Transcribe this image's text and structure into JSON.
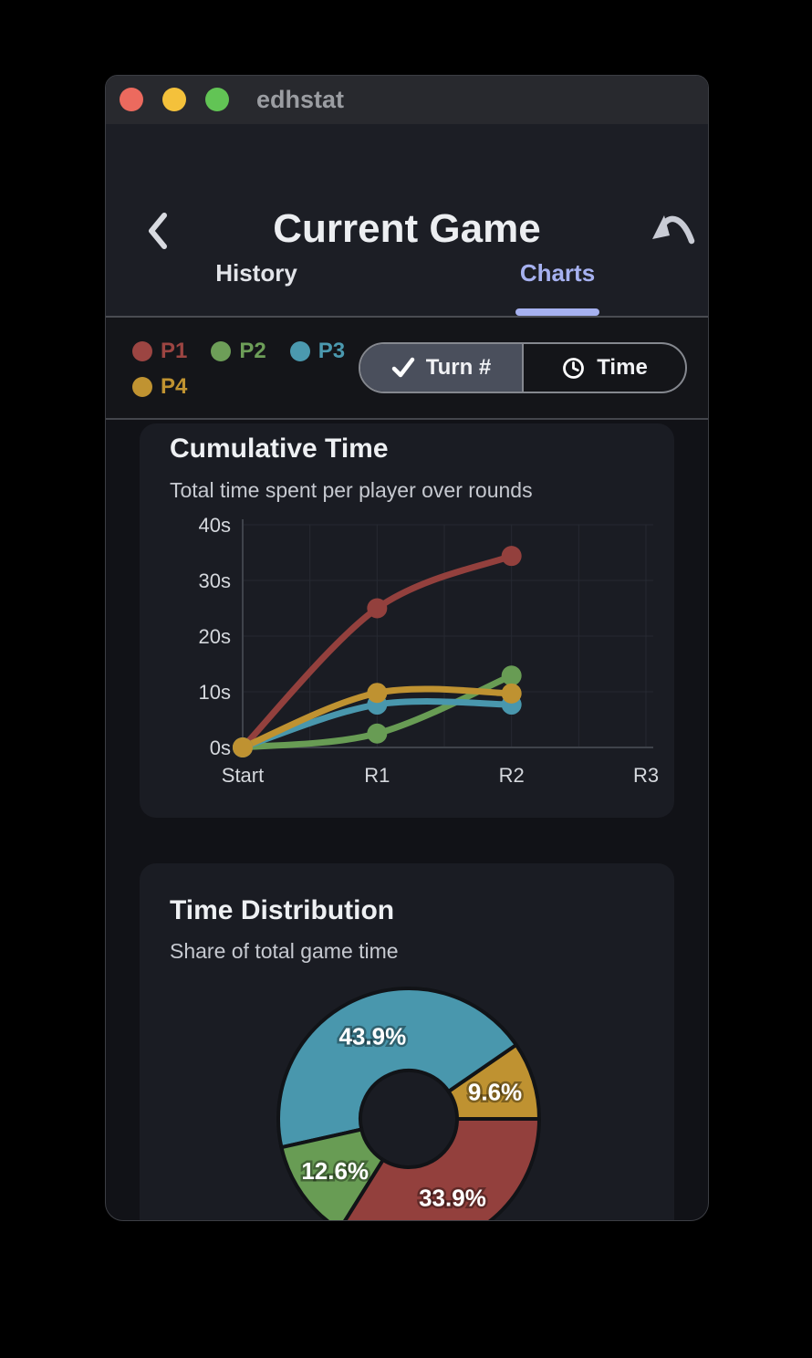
{
  "window": {
    "title": "edhstat",
    "traffic_lights": [
      "#ec6a5e",
      "#f4c13b",
      "#62c455"
    ]
  },
  "header": {
    "title": "Current Game",
    "accent": "#a6b1f0",
    "tabs": [
      {
        "label": "History",
        "active": false
      },
      {
        "label": "Charts",
        "active": true
      }
    ]
  },
  "toolbar": {
    "legend": [
      {
        "label": "P1",
        "color": "#9c4542"
      },
      {
        "label": "P2",
        "color": "#6d9e58"
      },
      {
        "label": "P3",
        "color": "#4b99af"
      },
      {
        "label": "P4",
        "color": "#c09331"
      }
    ],
    "toggle": [
      {
        "label": "Turn #",
        "icon": "check-icon",
        "selected": true
      },
      {
        "label": "Time",
        "icon": "clock-icon",
        "selected": false
      }
    ]
  },
  "chart_data": [
    {
      "type": "line",
      "title": "Cumulative Time",
      "subtitle": "Total time spent per player over rounds",
      "categories": [
        "Start",
        "R1",
        "R2",
        "R3"
      ],
      "y_tick_labels": [
        "0s",
        "10s",
        "20s",
        "30s",
        "40s"
      ],
      "ylim": [
        0,
        40
      ],
      "grid": true,
      "minor_gridline_between_categories": true,
      "series": [
        {
          "name": "P1",
          "color": "#93403d",
          "values": [
            0,
            25,
            34.4
          ]
        },
        {
          "name": "P2",
          "color": "#689c54",
          "values": [
            0,
            2.5,
            12.9
          ]
        },
        {
          "name": "P3",
          "color": "#4997ad",
          "values": [
            0,
            7.7,
            7.7
          ]
        },
        {
          "name": "P4",
          "color": "#bf9231",
          "values": [
            0,
            9.8,
            9.7
          ]
        }
      ]
    },
    {
      "type": "pie",
      "title": "Time Distribution",
      "subtitle": "Share of total game time",
      "donut": true,
      "start_angle_deg": 0,
      "direction": "counterclockwise",
      "slices": [
        {
          "name": "P4",
          "value": 9.6,
          "label": "9.6%",
          "color": "#bf9231"
        },
        {
          "name": "P3",
          "value": 43.9,
          "label": "43.9%",
          "color": "#4997ad"
        },
        {
          "name": "P2",
          "value": 12.6,
          "label": "12.6%",
          "color": "#689c54"
        },
        {
          "name": "P1",
          "value": 33.9,
          "label": "33.9%",
          "color": "#93403d"
        }
      ]
    }
  ]
}
